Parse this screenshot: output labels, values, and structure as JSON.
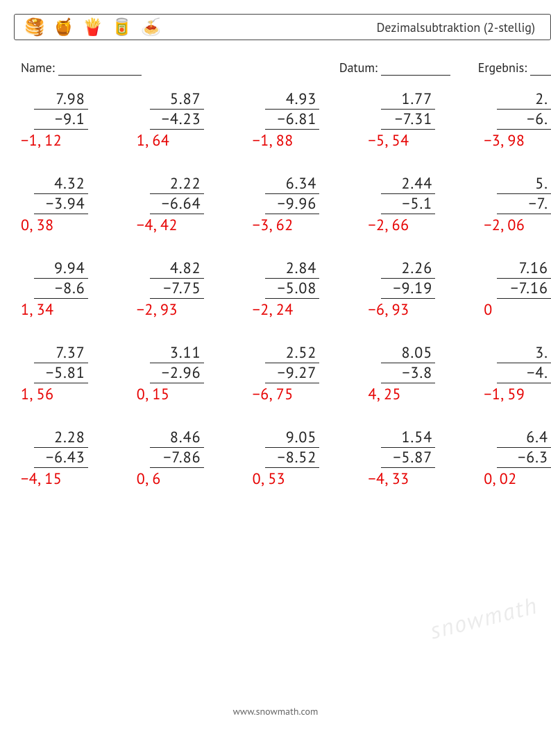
{
  "header": {
    "title": "Dezimalsubtraktion (2-stellig)",
    "icons": [
      "🥞",
      "🍯",
      "🍟",
      "🥫",
      "🍝"
    ]
  },
  "meta": {
    "name_label": "Name:",
    "date_label": "Datum:",
    "result_label": "Ergebnis:"
  },
  "footer": "www.snowmath.com",
  "watermark": "snowmath",
  "rows": [
    [
      {
        "a": "7.98",
        "b": "−9.1",
        "ans": "−1, 12"
      },
      {
        "a": "5.87",
        "b": "−4.23",
        "ans": "1, 64"
      },
      {
        "a": "4.93",
        "b": "−6.81",
        "ans": "−1, 88"
      },
      {
        "a": "1.77",
        "b": "−7.31",
        "ans": "−5, 54"
      },
      {
        "a": "2.",
        "b": "−6.",
        "ans": "−3, 98"
      }
    ],
    [
      {
        "a": "4.32",
        "b": "−3.94",
        "ans": "0, 38"
      },
      {
        "a": "2.22",
        "b": "−6.64",
        "ans": "−4, 42"
      },
      {
        "a": "6.34",
        "b": "−9.96",
        "ans": "−3, 62"
      },
      {
        "a": "2.44",
        "b": "−5.1",
        "ans": "−2, 66"
      },
      {
        "a": "5.",
        "b": "−7.",
        "ans": "−2, 06"
      }
    ],
    [
      {
        "a": "9.94",
        "b": "−8.6",
        "ans": "1, 34"
      },
      {
        "a": "4.82",
        "b": "−7.75",
        "ans": "−2, 93"
      },
      {
        "a": "2.84",
        "b": "−5.08",
        "ans": "−2, 24"
      },
      {
        "a": "2.26",
        "b": "−9.19",
        "ans": "−6, 93"
      },
      {
        "a": "7.16",
        "b": "−7.16",
        "ans": "0"
      }
    ],
    [
      {
        "a": "7.37",
        "b": "−5.81",
        "ans": "1, 56"
      },
      {
        "a": "3.11",
        "b": "−2.96",
        "ans": "0, 15"
      },
      {
        "a": "2.52",
        "b": "−9.27",
        "ans": "−6, 75"
      },
      {
        "a": "8.05",
        "b": "−3.8",
        "ans": "4, 25"
      },
      {
        "a": "3.",
        "b": "−4.",
        "ans": "−1, 59"
      }
    ],
    [
      {
        "a": "2.28",
        "b": "−6.43",
        "ans": "−4, 15"
      },
      {
        "a": "8.46",
        "b": "−7.86",
        "ans": "0, 6"
      },
      {
        "a": "9.05",
        "b": "−8.52",
        "ans": "0, 53"
      },
      {
        "a": "1.54",
        "b": "−5.87",
        "ans": "−4, 33"
      },
      {
        "a": "6.4",
        "b": "−6.3",
        "ans": "0, 02"
      }
    ]
  ]
}
